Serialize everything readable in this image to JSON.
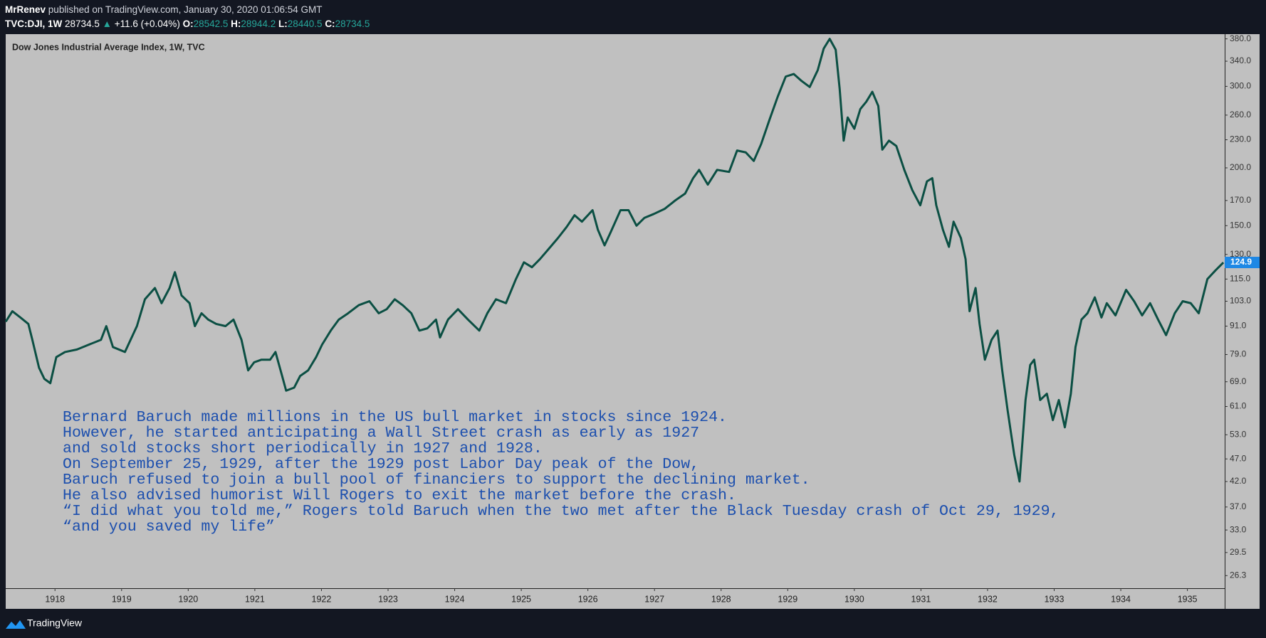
{
  "header": {
    "author": "MrRenev",
    "published": "published on TradingView.com, January 30, 2020 01:06:54 GMT",
    "symbol": "TVC:DJI, 1W",
    "price": "28734.5",
    "arrow": "▲",
    "change": "+11.6 (+0.04%)",
    "open_label": "O:",
    "open": "28542.5",
    "high_label": "H:",
    "high": "28944.2",
    "low_label": "L:",
    "low": "28440.5",
    "close_label": "C:",
    "close": "28734.5"
  },
  "footer": {
    "brand": "TradingView"
  },
  "chart_data": {
    "type": "line",
    "title": "Dow Jones Industrial Average Index, 1W, TVC",
    "color": "#0b4f43",
    "log_scale": true,
    "grid": false,
    "x": [
      1917.26,
      1917.36,
      1917.48,
      1917.6,
      1917.66,
      1917.76,
      1917.84,
      1917.93,
      1918.02,
      1918.15,
      1918.33,
      1918.51,
      1918.69,
      1918.77,
      1918.87,
      1919.05,
      1919.23,
      1919.35,
      1919.5,
      1919.6,
      1919.72,
      1919.8,
      1919.9,
      1920.02,
      1920.1,
      1920.2,
      1920.3,
      1920.42,
      1920.56,
      1920.68,
      1920.8,
      1920.9,
      1920.99,
      1921.1,
      1921.23,
      1921.31,
      1921.41,
      1921.47,
      1921.59,
      1921.68,
      1921.8,
      1921.92,
      1922.01,
      1922.14,
      1922.26,
      1922.4,
      1922.56,
      1922.72,
      1922.86,
      1922.98,
      1923.1,
      1923.22,
      1923.35,
      1923.47,
      1923.59,
      1923.72,
      1923.78,
      1923.9,
      1924.05,
      1924.2,
      1924.37,
      1924.49,
      1924.62,
      1924.77,
      1924.92,
      1925.04,
      1925.16,
      1925.28,
      1925.4,
      1925.55,
      1925.68,
      1925.8,
      1925.91,
      1926.07,
      1926.15,
      1926.25,
      1926.34,
      1926.49,
      1926.61,
      1926.73,
      1926.85,
      1926.99,
      1927.15,
      1927.31,
      1927.46,
      1927.58,
      1927.67,
      1927.8,
      1927.94,
      1928.12,
      1928.24,
      1928.37,
      1928.49,
      1928.6,
      1928.73,
      1928.85,
      1928.97,
      1929.09,
      1929.21,
      1929.33,
      1929.45,
      1929.54,
      1929.63,
      1929.72,
      1929.78,
      1929.84,
      1929.9,
      1930.0,
      1930.09,
      1930.18,
      1930.27,
      1930.36,
      1930.42,
      1930.52,
      1930.63,
      1930.75,
      1930.87,
      1930.99,
      1931.09,
      1931.17,
      1931.23,
      1931.33,
      1931.42,
      1931.49,
      1931.6,
      1931.67,
      1931.73,
      1931.82,
      1931.88,
      1931.96,
      1932.06,
      1932.15,
      1932.22,
      1932.3,
      1932.4,
      1932.48,
      1932.57,
      1932.64,
      1932.7,
      1932.79,
      1932.89,
      1932.98,
      1933.07,
      1933.16,
      1933.25,
      1933.32,
      1933.41,
      1933.5,
      1933.61,
      1933.71,
      1933.79,
      1933.92,
      1934.08,
      1934.2,
      1934.32,
      1934.44,
      1934.56,
      1934.68,
      1934.81,
      1934.93,
      1935.05,
      1935.17,
      1935.3,
      1935.42,
      1935.54
    ],
    "values": [
      93,
      98,
      95,
      92,
      85,
      74,
      70,
      68.5,
      78,
      80,
      81,
      83,
      85,
      91,
      82,
      80,
      91,
      104,
      110,
      102,
      110,
      119,
      106,
      102,
      91,
      97,
      94,
      92,
      91,
      94,
      85,
      73,
      76,
      77,
      77,
      80,
      71,
      66,
      67,
      71,
      73,
      78,
      83,
      89,
      94,
      97,
      101,
      103,
      97,
      99,
      104,
      101,
      97,
      89,
      90,
      94,
      86,
      94,
      99,
      94,
      89,
      97,
      104,
      102,
      115,
      125,
      122,
      127,
      133,
      141,
      149,
      158,
      153,
      162,
      147,
      136,
      145,
      162,
      162,
      150,
      156,
      159,
      163,
      170,
      176,
      190,
      198,
      184,
      198,
      196,
      218,
      216,
      207,
      225,
      255,
      285,
      315,
      319,
      308,
      299,
      325,
      362,
      380,
      360,
      296,
      229,
      257,
      243,
      268,
      278,
      292,
      272,
      219,
      229,
      223,
      198,
      179,
      166,
      187,
      190,
      166,
      147,
      135,
      153,
      141,
      127,
      98,
      110,
      92,
      77,
      85,
      89,
      73,
      60,
      48,
      42,
      63,
      75,
      77,
      63,
      65,
      57,
      63,
      55,
      65,
      82,
      94,
      97,
      105,
      95,
      102,
      96,
      109,
      103,
      96,
      102,
      94,
      87,
      97,
      103,
      102,
      97,
      115,
      120,
      124.9
    ],
    "last_value": 124.9,
    "xlim": [
      1917.26,
      1935.56
    ],
    "xticks": [
      1918,
      1919,
      1920,
      1921,
      1922,
      1923,
      1924,
      1925,
      1926,
      1927,
      1928,
      1929,
      1930,
      1931,
      1932,
      1933,
      1934,
      1935
    ],
    "ylim": [
      24.7,
      389
    ],
    "yticks": [
      {
        "value": 380,
        "label": "380.0"
      },
      {
        "value": 340,
        "label": "340.0"
      },
      {
        "value": 300,
        "label": "300.0"
      },
      {
        "value": 260,
        "label": "260.0"
      },
      {
        "value": 230,
        "label": "230.0"
      },
      {
        "value": 200,
        "label": "200.0"
      },
      {
        "value": 170,
        "label": "170.0"
      },
      {
        "value": 150,
        "label": "150.0"
      },
      {
        "value": 130,
        "label": "130.0"
      },
      {
        "value": 115,
        "label": "115.0"
      },
      {
        "value": 103,
        "label": "103.0"
      },
      {
        "value": 91,
        "label": "91.0"
      },
      {
        "value": 79,
        "label": "79.0"
      },
      {
        "value": 69,
        "label": "69.0"
      },
      {
        "value": 61,
        "label": "61.0"
      },
      {
        "value": 53,
        "label": "53.0"
      },
      {
        "value": 47,
        "label": "47.0"
      },
      {
        "value": 42,
        "label": "42.0"
      },
      {
        "value": 37,
        "label": "37.0"
      },
      {
        "value": 33,
        "label": "33.0"
      },
      29.5,
      26.3
    ],
    "annotation": [
      "Bernard Baruch made millions in the US bull market in stocks since 1924.",
      "However, he started anticipating a Wall Street crash as early as 1927",
      "and sold stocks short periodically in 1927 and 1928.",
      "On September 25, 1929, after the 1929 post Labor Day peak of the Dow,",
      "Baruch refused to join a bull pool of financiers to support the declining market.",
      "He also advised humorist Will Rogers to exit the market before the crash.",
      "“I did what you told me,” Rogers told Baruch when the two met after the Black Tuesday crash of Oct 29, 1929,",
      "“and you saved my life”"
    ]
  }
}
